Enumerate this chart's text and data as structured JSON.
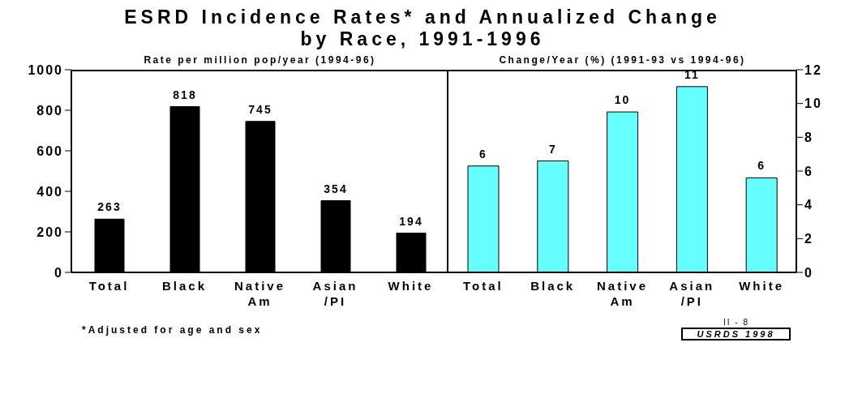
{
  "chart_data": [
    {
      "type": "bar",
      "title": "ESRD Incidence Rates* and Annualized Change by Race, 1991-1996",
      "subtitle": "Rate per million pop/year (1994-96)",
      "categories": [
        "Total",
        "Black",
        "Native Am",
        "Asian /PI",
        "White"
      ],
      "values": [
        263,
        818,
        745,
        354,
        194
      ],
      "color": "#000000",
      "ylim": [
        0,
        1000
      ],
      "yticks": [
        0,
        200,
        400,
        600,
        800,
        1000
      ],
      "data_labels": true,
      "grid": false,
      "legend": false,
      "annotations": [
        "*Adjusted for age and sex"
      ]
    },
    {
      "type": "bar",
      "subtitle": "Change/Year (%) (1991-93 vs 1994-96)",
      "categories": [
        "Total",
        "Black",
        "Native Am",
        "Asian /PI",
        "White"
      ],
      "values": [
        6.3,
        6.6,
        9.5,
        11.0,
        5.6
      ],
      "value_labels": [
        "6",
        "7",
        "10",
        "11",
        "6"
      ],
      "color": "#66ffff",
      "ylim": [
        0,
        12
      ],
      "yticks": [
        0,
        2,
        4,
        6,
        8,
        10,
        12
      ],
      "grid": false,
      "legend": false,
      "annotations": [
        "II - 8",
        "USRDS 1998"
      ]
    }
  ]
}
